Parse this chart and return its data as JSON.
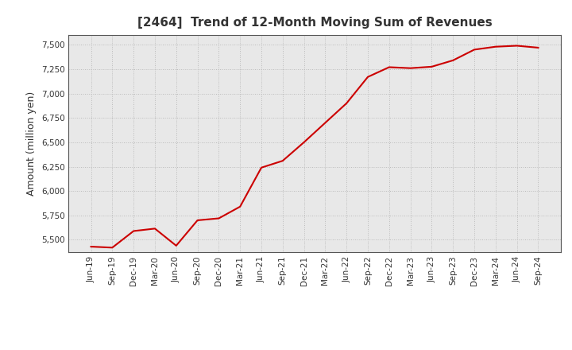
{
  "title": "[2464]  Trend of 12-Month Moving Sum of Revenues",
  "ylabel": "Amount (million yen)",
  "line_color": "#CC0000",
  "line_width": 1.5,
  "background_color": "#FFFFFF",
  "plot_bg_color": "#E8E8E8",
  "grid_color": "#BBBBBB",
  "spine_color": "#555555",
  "title_color": "#333333",
  "ylim": [
    5375,
    7600
  ],
  "yticks": [
    5500,
    5750,
    6000,
    6250,
    6500,
    6750,
    7000,
    7250,
    7500
  ],
  "x_labels": [
    "Jun-19",
    "Sep-19",
    "Dec-19",
    "Mar-20",
    "Jun-20",
    "Sep-20",
    "Dec-20",
    "Mar-21",
    "Jun-21",
    "Sep-21",
    "Dec-21",
    "Mar-22",
    "Jun-22",
    "Sep-22",
    "Dec-22",
    "Mar-23",
    "Jun-23",
    "Sep-23",
    "Dec-23",
    "Mar-24",
    "Jun-24",
    "Sep-24"
  ],
  "values": [
    5430,
    5420,
    5590,
    5615,
    5440,
    5700,
    5720,
    5840,
    6240,
    6310,
    6500,
    6700,
    6900,
    7170,
    7270,
    7260,
    7275,
    7340,
    7450,
    7480,
    7490,
    7470
  ]
}
